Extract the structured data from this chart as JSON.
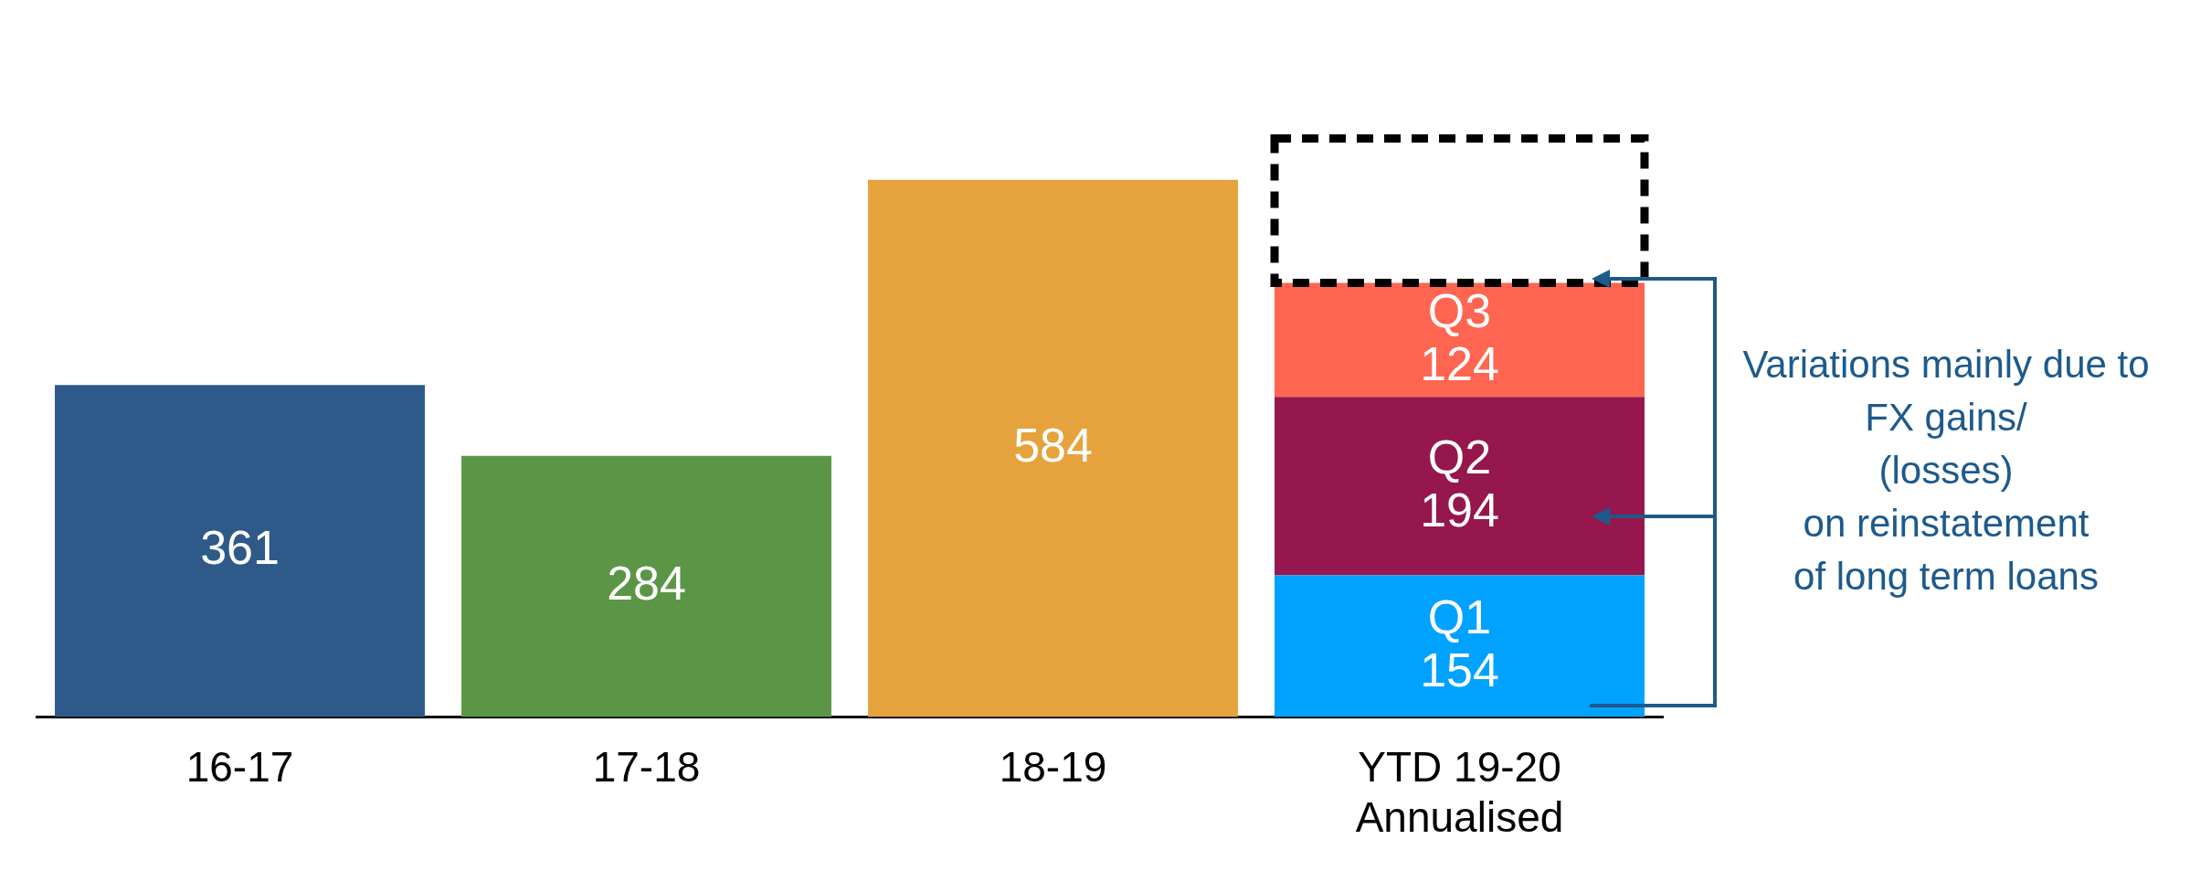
{
  "chart_data": {
    "type": "bar",
    "stacked": true,
    "categories": [
      "16-17",
      "17-18",
      "18-19",
      "YTD 19-20\nAnnualised"
    ],
    "series": [
      {
        "colors": [
          "#2e5a8a",
          "#5b9646",
          "#e6a23c",
          null
        ],
        "values": [
          361,
          284,
          584,
          null
        ],
        "value_labels": [
          "361",
          "284",
          "584",
          null
        ]
      },
      {
        "name": "Q1",
        "color": "#00a2ff",
        "values": [
          null,
          null,
          null,
          154
        ],
        "value_labels": [
          null,
          null,
          null,
          "154"
        ]
      },
      {
        "name": "Q2",
        "color": "#95174d",
        "values": [
          null,
          null,
          null,
          194
        ],
        "value_labels": [
          null,
          null,
          null,
          "194"
        ]
      },
      {
        "name": "Q3",
        "color": "#ff6550",
        "values": [
          null,
          null,
          null,
          124
        ],
        "value_labels": [
          null,
          null,
          null,
          "124"
        ]
      },
      {
        "color": "#000000",
        "line_style": "dashed",
        "values": [
          null,
          null,
          null,
          157
        ]
      }
    ],
    "annotations": [
      "Variations mainly due to FX gains/\n(losses)\non reinstatement\nof long term loans"
    ],
    "legend": false,
    "grid": false
  }
}
